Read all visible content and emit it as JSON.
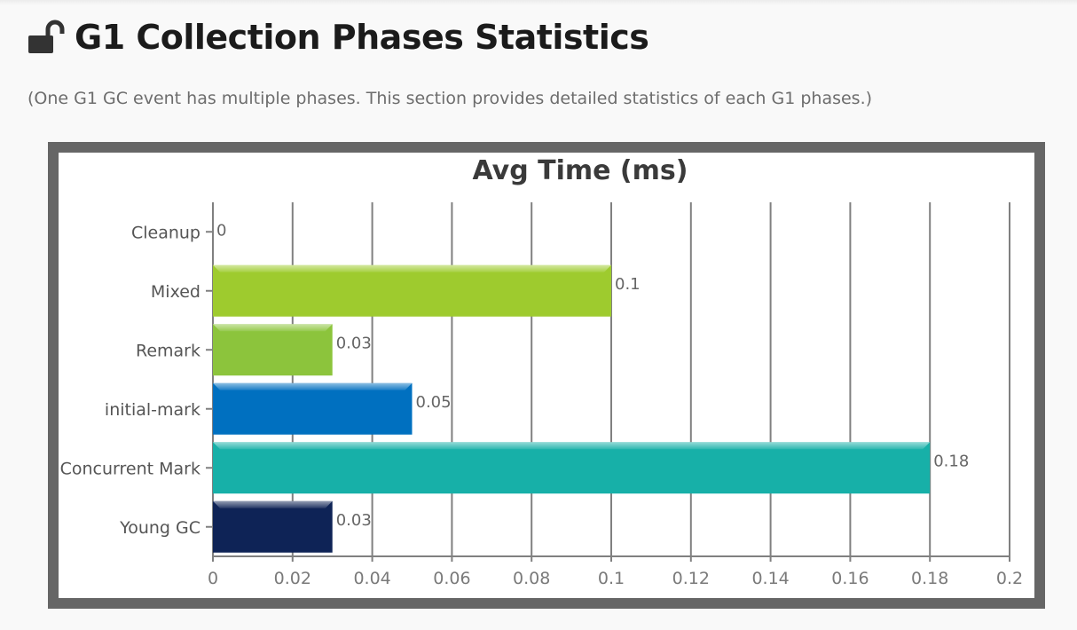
{
  "header": {
    "title": "G1 Collection Phases Statistics",
    "subtitle": "(One G1 GC event has multiple phases. This section provides detailed statistics of each G1 phases.)",
    "icon": "unlock-icon"
  },
  "chart_data": {
    "type": "bar",
    "orientation": "horizontal",
    "title": "Avg Time (ms)",
    "xlabel": "",
    "ylabel": "",
    "categories": [
      "Cleanup",
      "Mixed",
      "Remark",
      "initial-mark",
      "Concurrent Mark",
      "Young GC"
    ],
    "values": [
      0,
      0.1,
      0.03,
      0.05,
      0.18,
      0.03
    ],
    "value_labels": [
      "0",
      "0.1",
      "0.03",
      "0.05",
      "0.18",
      "0.03"
    ],
    "colors": [
      "#9acd32",
      "#9ecb2e",
      "#8cc43c",
      "#0070c0",
      "#17b0a8",
      "#0e2356"
    ],
    "xlim": [
      0,
      0.2
    ],
    "xticks": [
      "0",
      "0.02",
      "0.04",
      "0.06",
      "0.08",
      "0.1",
      "0.12",
      "0.14",
      "0.16",
      "0.18",
      "0.2"
    ],
    "grid": true,
    "legend": false
  }
}
